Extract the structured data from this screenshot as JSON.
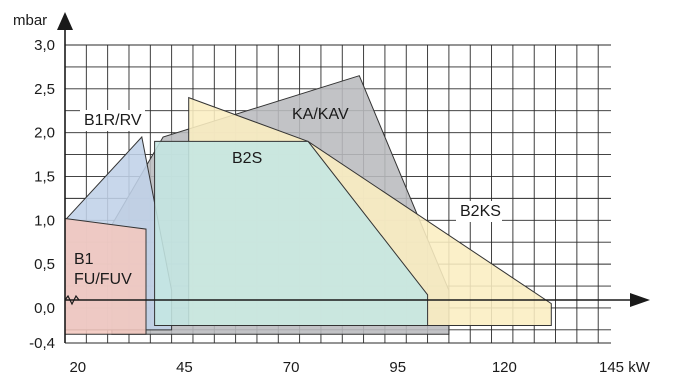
{
  "chart_data": {
    "type": "area",
    "title": "",
    "xlabel": "",
    "ylabel": "",
    "x_unit": "kW",
    "y_unit": "mbar",
    "xlim": [
      17,
      145
    ],
    "ylim": [
      -0.4,
      3.0
    ],
    "x_ticks": [
      {
        "value": 20,
        "label": "20"
      },
      {
        "value": 45,
        "label": "45"
      },
      {
        "value": 70,
        "label": "70"
      },
      {
        "value": 95,
        "label": "95"
      },
      {
        "value": 120,
        "label": "120"
      },
      {
        "value": 145,
        "label": "145 kW"
      }
    ],
    "y_ticks": [
      {
        "value": 3.0,
        "label": "3,0"
      },
      {
        "value": 2.5,
        "label": "2,5"
      },
      {
        "value": 2.0,
        "label": "2,0"
      },
      {
        "value": 1.5,
        "label": "1,5"
      },
      {
        "value": 1.0,
        "label": "1,0"
      },
      {
        "value": 0.5,
        "label": "0,5"
      },
      {
        "value": 0.0,
        "label": "0,0"
      },
      {
        "value": -0.4,
        "label": "-0,4"
      }
    ],
    "grid": true,
    "regions": [
      {
        "name": "KA/KAV",
        "color": "#b9bbbe",
        "points": [
          [
            28,
            0.95
          ],
          [
            40,
            1.95
          ],
          [
            86,
            2.65
          ],
          [
            107,
            0.2
          ],
          [
            107,
            -0.3
          ],
          [
            28,
            -0.3
          ]
        ]
      },
      {
        "name": "B2KS",
        "color": "#fbeec2",
        "points": [
          [
            46,
            2.4
          ],
          [
            74,
            1.9
          ],
          [
            131,
            0.05
          ],
          [
            131,
            -0.2
          ],
          [
            46,
            -0.2
          ]
        ]
      },
      {
        "name": "B1R/RV",
        "color": "#c0d1e8",
        "points": [
          [
            17,
            1.0
          ],
          [
            35,
            1.95
          ],
          [
            42,
            0.2
          ],
          [
            42,
            -0.25
          ],
          [
            17,
            -0.25
          ]
        ]
      },
      {
        "name": "B2S",
        "color": "#c4e6e2",
        "points": [
          [
            38,
            1.9
          ],
          [
            74,
            1.9
          ],
          [
            102,
            0.15
          ],
          [
            102,
            -0.2
          ],
          [
            38,
            -0.2
          ]
        ]
      },
      {
        "name": "B1\nFU/FUV",
        "color": "#f3c7be",
        "points": [
          [
            17,
            1.02
          ],
          [
            36,
            0.9
          ],
          [
            36,
            -0.3
          ],
          [
            17,
            -0.3
          ]
        ]
      }
    ]
  }
}
